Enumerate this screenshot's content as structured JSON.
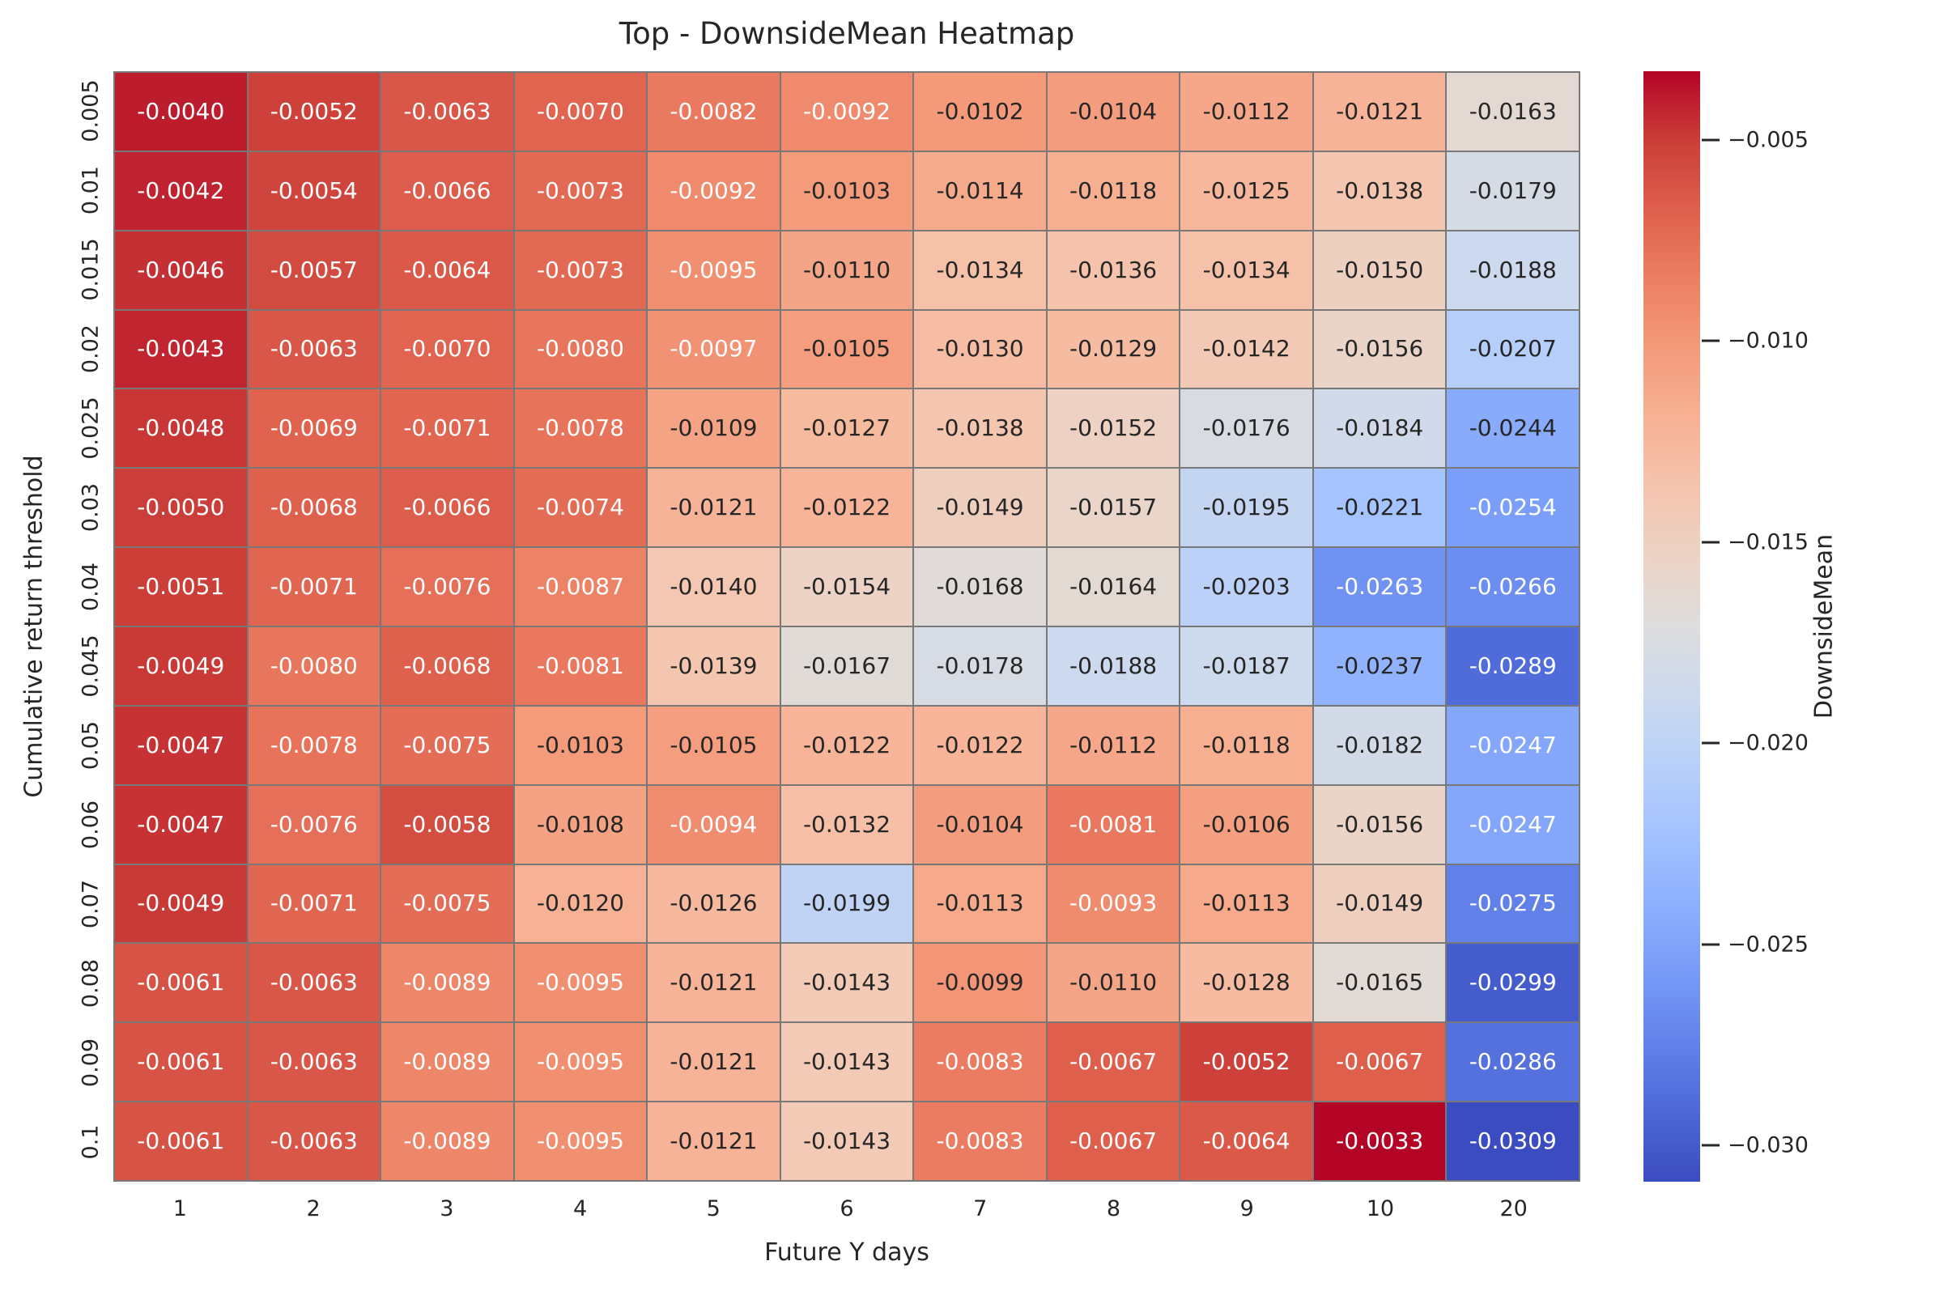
{
  "title": "Top - DownsideMean Heatmap",
  "colors": {
    "background": "#ffffff",
    "grid_line": "#787878",
    "text": "#262626",
    "colormap_low": "#3b4cc0",
    "colormap_mid": "#dddddd",
    "colormap_high": "#b40426"
  },
  "chart_data": {
    "type": "heatmap",
    "title": "Top - DownsideMean Heatmap",
    "xlabel": "Future Y days",
    "ylabel": "Cumulative return threshold",
    "colormap": "coolwarm",
    "vmin": -0.0309,
    "vmax": -0.0033,
    "annot_decimals": 4,
    "grid": false,
    "x_categories": [
      "1",
      "2",
      "3",
      "4",
      "5",
      "6",
      "7",
      "8",
      "9",
      "10",
      "20"
    ],
    "y_categories": [
      "0.005",
      "0.01",
      "0.015",
      "0.02",
      "0.025",
      "0.03",
      "0.04",
      "0.045",
      "0.05",
      "0.06",
      "0.07",
      "0.08",
      "0.09",
      "0.1"
    ],
    "values": [
      [
        -0.004,
        -0.0052,
        -0.0063,
        -0.007,
        -0.0082,
        -0.0092,
        -0.0102,
        -0.0104,
        -0.0112,
        -0.0121,
        -0.0163
      ],
      [
        -0.0042,
        -0.0054,
        -0.0066,
        -0.0073,
        -0.0092,
        -0.0103,
        -0.0114,
        -0.0118,
        -0.0125,
        -0.0138,
        -0.0179
      ],
      [
        -0.0046,
        -0.0057,
        -0.0064,
        -0.0073,
        -0.0095,
        -0.011,
        -0.0134,
        -0.0136,
        -0.0134,
        -0.015,
        -0.0188
      ],
      [
        -0.0043,
        -0.0063,
        -0.007,
        -0.008,
        -0.0097,
        -0.0105,
        -0.013,
        -0.0129,
        -0.0142,
        -0.0156,
        -0.0207
      ],
      [
        -0.0048,
        -0.0069,
        -0.0071,
        -0.0078,
        -0.0109,
        -0.0127,
        -0.0138,
        -0.0152,
        -0.0176,
        -0.0184,
        -0.0244
      ],
      [
        -0.005,
        -0.0068,
        -0.0066,
        -0.0074,
        -0.0121,
        -0.0122,
        -0.0149,
        -0.0157,
        -0.0195,
        -0.0221,
        -0.0254
      ],
      [
        -0.0051,
        -0.0071,
        -0.0076,
        -0.0087,
        -0.014,
        -0.0154,
        -0.0168,
        -0.0164,
        -0.0203,
        -0.0263,
        -0.0266
      ],
      [
        -0.0049,
        -0.008,
        -0.0068,
        -0.0081,
        -0.0139,
        -0.0167,
        -0.0178,
        -0.0188,
        -0.0187,
        -0.0237,
        -0.0289
      ],
      [
        -0.0047,
        -0.0078,
        -0.0075,
        -0.0103,
        -0.0105,
        -0.0122,
        -0.0122,
        -0.0112,
        -0.0118,
        -0.0182,
        -0.0247
      ],
      [
        -0.0047,
        -0.0076,
        -0.0058,
        -0.0108,
        -0.0094,
        -0.0132,
        -0.0104,
        -0.0081,
        -0.0106,
        -0.0156,
        -0.0247
      ],
      [
        -0.0049,
        -0.0071,
        -0.0075,
        -0.012,
        -0.0126,
        -0.0199,
        -0.0113,
        -0.0093,
        -0.0113,
        -0.0149,
        -0.0275
      ],
      [
        -0.0061,
        -0.0063,
        -0.0089,
        -0.0095,
        -0.0121,
        -0.0143,
        -0.0099,
        -0.011,
        -0.0128,
        -0.0165,
        -0.0299
      ],
      [
        -0.0061,
        -0.0063,
        -0.0089,
        -0.0095,
        -0.0121,
        -0.0143,
        -0.0083,
        -0.0067,
        -0.0052,
        -0.0067,
        -0.0286
      ],
      [
        -0.0061,
        -0.0063,
        -0.0089,
        -0.0095,
        -0.0121,
        -0.0143,
        -0.0083,
        -0.0067,
        -0.0064,
        -0.0033,
        -0.0309
      ]
    ],
    "colorbar": {
      "label": "DownsideMean",
      "tick_values": [
        -0.005,
        -0.01,
        -0.015,
        -0.02,
        -0.025,
        -0.03
      ],
      "tick_labels": [
        "−0.005",
        "−0.010",
        "−0.015",
        "−0.020",
        "−0.025",
        "−0.030"
      ],
      "legend_position": "right"
    }
  }
}
